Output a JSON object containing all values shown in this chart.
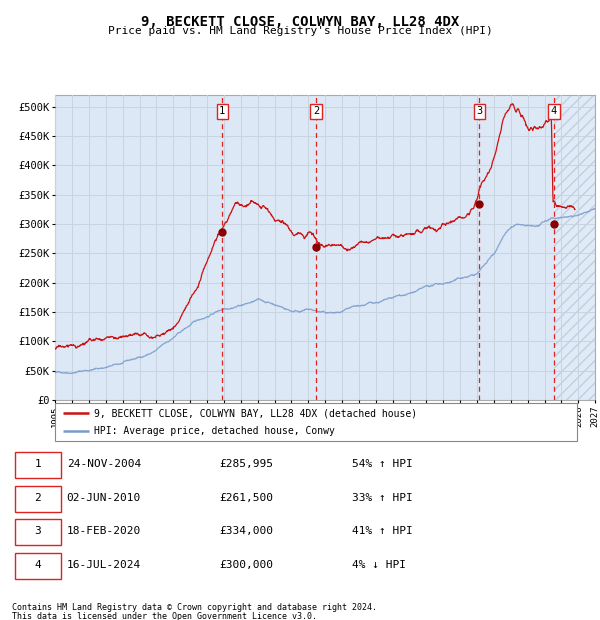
{
  "title": "9, BECKETT CLOSE, COLWYN BAY, LL28 4DX",
  "subtitle": "Price paid vs. HM Land Registry's House Price Index (HPI)",
  "ylim": [
    0,
    520000
  ],
  "yticks": [
    0,
    50000,
    100000,
    150000,
    200000,
    250000,
    300000,
    350000,
    400000,
    450000,
    500000
  ],
  "ytick_labels": [
    "£0",
    "£50K",
    "£100K",
    "£150K",
    "£200K",
    "£250K",
    "£300K",
    "£350K",
    "£400K",
    "£450K",
    "£500K"
  ],
  "hpi_color": "#7799cc",
  "price_color": "#cc1111",
  "dashed_line_color": "#dd2222",
  "grid_color": "#c8d4e0",
  "bg_color": "#dce8f5",
  "transactions": [
    {
      "label": "1",
      "x_year": 2004.9,
      "price": 285995,
      "dot_y": 285995
    },
    {
      "label": "2",
      "x_year": 2010.45,
      "price": 261500,
      "dot_y": 261500
    },
    {
      "label": "3",
      "x_year": 2020.13,
      "price": 334000,
      "dot_y": 334000
    },
    {
      "label": "4",
      "x_year": 2024.55,
      "price": 300000,
      "dot_y": 300000
    }
  ],
  "legend_entries": [
    "9, BECKETT CLOSE, COLWYN BAY, LL28 4DX (detached house)",
    "HPI: Average price, detached house, Conwy"
  ],
  "footer_lines": [
    "Contains HM Land Registry data © Crown copyright and database right 2024.",
    "This data is licensed under the Open Government Licence v3.0."
  ],
  "table_rows": [
    [
      "1",
      "24-NOV-2004",
      "£285,995",
      "54% ↑ HPI"
    ],
    [
      "2",
      "02-JUN-2010",
      "£261,500",
      "33% ↑ HPI"
    ],
    [
      "3",
      "18-FEB-2020",
      "£334,000",
      "41% ↑ HPI"
    ],
    [
      "4",
      "16-JUL-2024",
      "£300,000",
      "4% ↓ HPI"
    ]
  ],
  "xmin": 1995,
  "xmax": 2027,
  "hatch_start": 2024.55
}
